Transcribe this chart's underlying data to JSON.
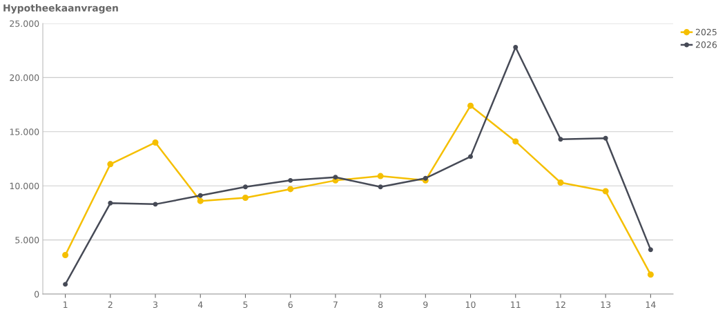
{
  "chart_data": {
    "type": "line",
    "title": "Hypotheekaanvragen",
    "categories": [
      "1",
      "2",
      "3",
      "4",
      "5",
      "6",
      "7",
      "8",
      "9",
      "10",
      "11",
      "12",
      "13",
      "14"
    ],
    "series": [
      {
        "name": "2025",
        "color": "#f5bf00",
        "values": [
          3600,
          12000,
          14000,
          8600,
          8900,
          9700,
          10500,
          10900,
          10500,
          17400,
          14100,
          10300,
          9500,
          1800
        ]
      },
      {
        "name": "2026",
        "color": "#464a56",
        "values": [
          900,
          8400,
          8300,
          9100,
          9900,
          10500,
          10800,
          9900,
          10700,
          12700,
          22800,
          14300,
          14400,
          4100
        ]
      }
    ],
    "ylim": [
      0,
      25000
    ],
    "yticks": [
      0,
      {
        "value": 5000,
        "label": "5.000"
      },
      {
        "value": 10000,
        "label": "10.000"
      },
      {
        "value": 15000,
        "label": "15.000"
      },
      {
        "value": 20000,
        "label": "20.000"
      },
      {
        "value": 25000,
        "label": "25.000"
      }
    ],
    "grid": "y",
    "legend": "top right",
    "marker": "circle",
    "line_style": "solid"
  }
}
